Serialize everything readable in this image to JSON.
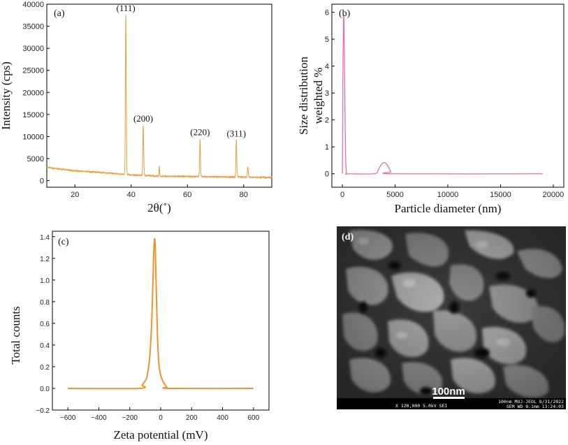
{
  "colors": {
    "xrd": "#e8a040",
    "dls": "#e070b0",
    "zeta": "#f0922e",
    "axis": "#000000"
  },
  "chart_data": [
    {
      "panel": "(a)",
      "type": "line",
      "xlabel": "2θ(˚)",
      "ylabel": "Intensity (cps)",
      "xlim": [
        10,
        90
      ],
      "ylim": [
        -1500,
        40000
      ],
      "xticks": [
        20,
        40,
        60,
        80
      ],
      "yticks": [
        0,
        5000,
        10000,
        15000,
        20000,
        25000,
        30000,
        35000,
        40000
      ],
      "background": {
        "x": [
          10,
          20,
          30,
          40,
          50,
          60,
          70,
          80,
          90
        ],
        "y": [
          3000,
          2200,
          1800,
          1300,
          1000,
          950,
          850,
          800,
          700
        ]
      },
      "peaks": [
        {
          "x": 38.1,
          "height": 36200,
          "width": 0.35,
          "label": "(111)"
        },
        {
          "x": 44.3,
          "height": 11400,
          "width": 0.35,
          "label": "(200)"
        },
        {
          "x": 50.0,
          "height": 2300,
          "width": 0.25,
          "label": ""
        },
        {
          "x": 64.5,
          "height": 8600,
          "width": 0.35,
          "label": "(220)"
        },
        {
          "x": 77.4,
          "height": 8400,
          "width": 0.35,
          "label": "(311)"
        },
        {
          "x": 81.5,
          "height": 2400,
          "width": 0.35,
          "label": ""
        }
      ]
    },
    {
      "panel": "(b)",
      "type": "line",
      "xlabel": "Particle diameter (nm)",
      "ylabel": "Size distribution weighted %",
      "ylabel_lines": [
        "Size distribution",
        "weighted %"
      ],
      "xlim": [
        -1000,
        21000
      ],
      "ylim": [
        -0.5,
        6.3
      ],
      "xticks": [
        0,
        5000,
        10000,
        15000,
        20000
      ],
      "yticks": [
        0,
        1,
        2,
        3,
        4,
        5,
        6
      ],
      "x": [
        0,
        30,
        60,
        100,
        130,
        160,
        200,
        250,
        300,
        350,
        400,
        500,
        3000,
        3400,
        3700,
        4000,
        4300,
        4600,
        5000,
        19000
      ],
      "y": [
        0,
        2.0,
        4.4,
        5.6,
        5.9,
        5.4,
        4.0,
        2.2,
        0.8,
        0.2,
        0,
        0,
        0,
        0.15,
        0.35,
        0.42,
        0.3,
        0.08,
        0,
        0
      ]
    },
    {
      "panel": "(c)",
      "type": "line",
      "xlabel": "Zeta potential (mV)",
      "ylabel": "Total counts",
      "xlim": [
        -700,
        700
      ],
      "ylim": [
        -0.2,
        1.45
      ],
      "xticks": [
        -600,
        -400,
        -200,
        0,
        200,
        400,
        600
      ],
      "yticks": [
        -0.2,
        0.0,
        0.2,
        0.4,
        0.6,
        0.8,
        1.0,
        1.2,
        1.4
      ],
      "x": [
        -600,
        -140,
        -120,
        -110,
        -100,
        -90,
        -80,
        -70,
        -60,
        -55,
        -50,
        -45,
        -40,
        -35,
        -30,
        -25,
        -20,
        -15,
        -10,
        0,
        10,
        20,
        30,
        40,
        60,
        600
      ],
      "y": [
        0,
        0,
        0.03,
        0.05,
        0.07,
        0.1,
        0.18,
        0.3,
        0.55,
        0.75,
        1.0,
        1.25,
        1.38,
        1.3,
        1.0,
        0.7,
        0.45,
        0.3,
        0.2,
        0.12,
        0.08,
        0.05,
        0.03,
        0.01,
        0,
        0
      ]
    }
  ],
  "sem": {
    "panel": "(d)",
    "scale_bar": "100nm",
    "info_left": "X 120,000   5.0kV  SEI",
    "info_right_top": "100nm MUJ-JEOL 8/31/2022",
    "info_right_bottom": "SEM     WD 8.1mm  13:24:03"
  }
}
